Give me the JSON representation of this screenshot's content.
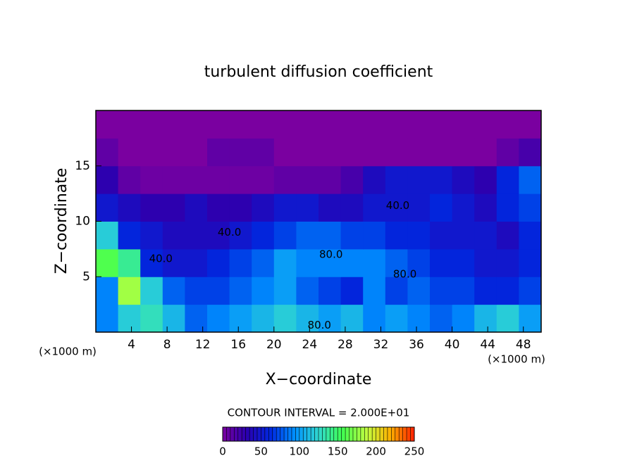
{
  "chart_data": {
    "type": "heatmap",
    "title": "turbulent diffusion coefficient",
    "xlabel": "X−coordinate",
    "ylabel": "Z−coordinate",
    "x_unit_label": "(×1000 m)",
    "y_unit_label": "(×1000 m)",
    "contour_interval_label": "CONTOUR INTERVAL = 2.000E+01",
    "xlim": [
      0,
      50
    ],
    "ylim": [
      0,
      20
    ],
    "xticks": [
      4,
      8,
      12,
      16,
      20,
      24,
      28,
      32,
      36,
      40,
      44,
      48
    ],
    "yticks": [
      5,
      10,
      15
    ],
    "x": [
      1.25,
      3.75,
      6.25,
      8.75,
      11.25,
      13.75,
      16.25,
      18.75,
      21.25,
      23.75,
      26.25,
      28.75,
      31.25,
      33.75,
      36.25,
      38.75,
      41.25,
      43.75,
      46.25,
      48.75
    ],
    "y": [
      1.25,
      3.75,
      6.25,
      8.75,
      11.25,
      13.75,
      16.25,
      18.75
    ],
    "z": [
      [
        90,
        120,
        130,
        110,
        80,
        90,
        100,
        110,
        120,
        110,
        100,
        110,
        90,
        100,
        90,
        80,
        90,
        110,
        120,
        100
      ],
      [
        90,
        180,
        120,
        80,
        70,
        70,
        80,
        90,
        100,
        80,
        70,
        60,
        90,
        70,
        80,
        70,
        70,
        60,
        60,
        70
      ],
      [
        160,
        140,
        60,
        50,
        50,
        60,
        70,
        80,
        100,
        90,
        90,
        90,
        90,
        80,
        70,
        60,
        60,
        50,
        50,
        60
      ],
      [
        120,
        60,
        50,
        40,
        40,
        40,
        50,
        60,
        70,
        80,
        80,
        70,
        70,
        60,
        60,
        50,
        50,
        50,
        40,
        60
      ],
      [
        50,
        40,
        30,
        30,
        40,
        30,
        30,
        40,
        50,
        50,
        40,
        40,
        50,
        50,
        50,
        60,
        50,
        40,
        60,
        70
      ],
      [
        30,
        10,
        5,
        5,
        5,
        5,
        5,
        5,
        10,
        10,
        10,
        20,
        40,
        50,
        50,
        50,
        40,
        30,
        60,
        80
      ],
      [
        10,
        0,
        0,
        0,
        0,
        10,
        10,
        10,
        0,
        0,
        0,
        0,
        0,
        0,
        0,
        0,
        0,
        0,
        10,
        20
      ],
      [
        0,
        0,
        0,
        0,
        0,
        0,
        0,
        0,
        0,
        0,
        0,
        0,
        0,
        0,
        0,
        0,
        0,
        0,
        0,
        0
      ]
    ],
    "colors": [
      "#7a00a0",
      "#2a00b0",
      "#0028e0",
      "#0090ff",
      "#30d8d0",
      "#40ff50",
      "#c0ff40",
      "#ffb000",
      "#ff2000"
    ],
    "colorbar": {
      "range": [
        0,
        250
      ],
      "ticks": [
        0,
        50,
        100,
        150,
        200,
        250
      ]
    },
    "contour_labels": [
      {
        "value": 40,
        "label": "40.0",
        "x": 33.9,
        "y": 11.4
      },
      {
        "value": 40,
        "label": "40.0",
        "x": 15,
        "y": 9
      },
      {
        "value": 40,
        "label": "40.0",
        "x": 7.3,
        "y": 6.6
      },
      {
        "value": 80,
        "label": "80.0",
        "x": 26.4,
        "y": 7
      },
      {
        "value": 80,
        "label": "80.0",
        "x": 34.7,
        "y": 5.2
      },
      {
        "value": 80,
        "label": "80.0",
        "x": 25.1,
        "y": 0.6
      }
    ]
  }
}
